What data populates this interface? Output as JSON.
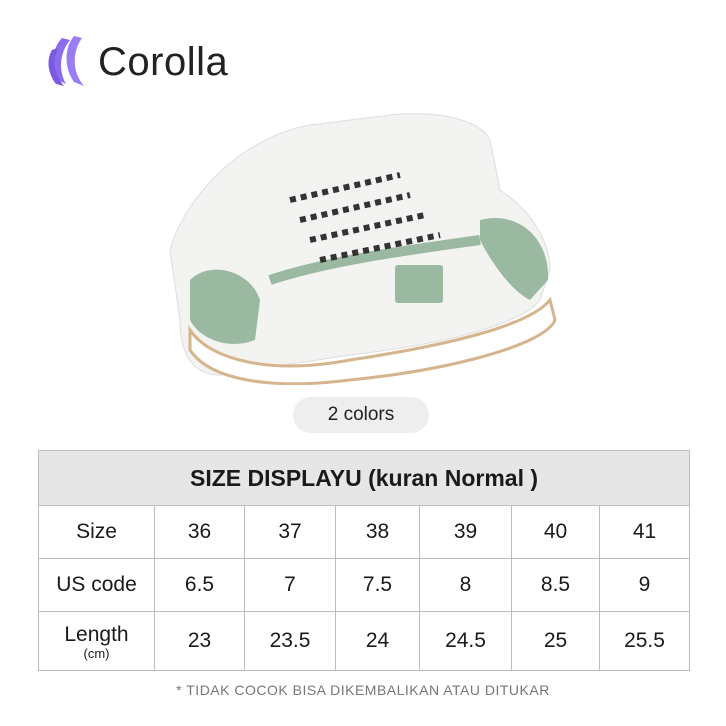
{
  "brand": {
    "name": "Corolla",
    "logo_color": "#7b5ae0"
  },
  "product": {
    "colors_label": "2 colors",
    "shoe_accent": "#9bb9a0"
  },
  "size_table": {
    "title": "SIZE DISPLAYU  (kuran Normal )",
    "rows": [
      {
        "label": "Size",
        "sub": "",
        "values": [
          "36",
          "37",
          "38",
          "39",
          "40",
          "41"
        ]
      },
      {
        "label": "US code",
        "sub": "",
        "values": [
          "6.5",
          "7",
          "7.5",
          "8",
          "8.5",
          "9"
        ]
      },
      {
        "label": "Length",
        "sub": "(cm)",
        "values": [
          "23",
          "23.5",
          "24",
          "24.5",
          "25",
          "25.5"
        ]
      }
    ]
  },
  "note": "* TIDAK COCOK BISA DIKEMBALIKAN ATAU DITUKAR"
}
